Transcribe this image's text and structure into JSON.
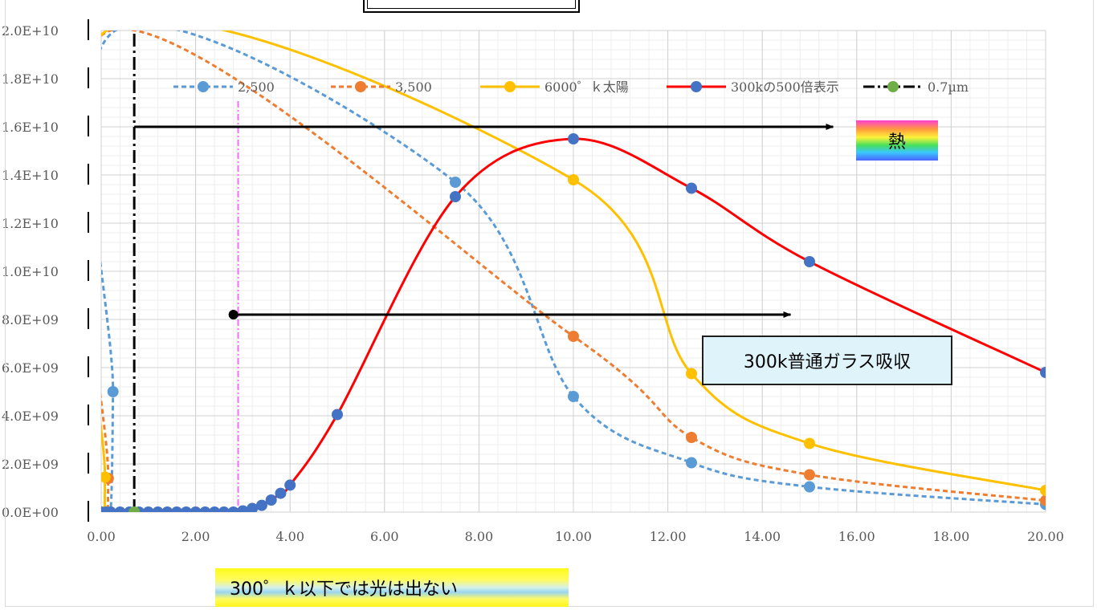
{
  "chart_data": {
    "type": "line",
    "title": "",
    "xlabel": "",
    "ylabel": "",
    "xlim": [
      0,
      20
    ],
    "ylim": [
      0,
      20000000000
    ],
    "x_ticks": [
      "0.00",
      "2.00",
      "4.00",
      "6.00",
      "8.00",
      "10.00",
      "12.00",
      "14.00",
      "16.00",
      "18.00",
      "20.00"
    ],
    "y_ticks": [
      "0.0E+00",
      "2.0E+09",
      "4.0E+09",
      "6.0E+09",
      "8.0E+09",
      "1.0E+10",
      "1.2E+10",
      "1.4E+10",
      "1.6E+10",
      "1.8E+10",
      "2.0E+10"
    ],
    "grid": true,
    "legend_position": "top",
    "series": [
      {
        "name": "2,500",
        "color": "#5b9bd5",
        "style": "dashed",
        "x": [
          0.1,
          0.2,
          0.25,
          0.3,
          7.5,
          10.0,
          12.5,
          15.0,
          20.0
        ],
        "y": [
          0,
          0,
          5000000000,
          20000000000,
          13700000000,
          4800000000,
          2050000000,
          1050000000,
          320000000
        ]
      },
      {
        "name": "3,500",
        "color": "#ed7d31",
        "style": "dashed",
        "x": [
          0.05,
          0.1,
          0.15,
          0.2,
          10.0,
          12.5,
          15.0,
          20.0
        ],
        "y": [
          0,
          0,
          1400000000,
          20000000000,
          7300000000,
          3100000000,
          1550000000,
          480000000
        ]
      },
      {
        "name": "6000゜ｋ太陽",
        "color": "#ffc000",
        "style": "solid",
        "x": [
          0.05,
          0.08,
          0.12,
          10.0,
          12.5,
          15.0,
          20.0
        ],
        "y": [
          0,
          1450000000,
          20000000000,
          13800000000,
          5750000000,
          2850000000,
          900000000
        ]
      },
      {
        "name": "300kの500倍表示",
        "color": "#ff0000",
        "marker": "#4472c4",
        "style": "solid",
        "x": [
          0.0,
          0.1,
          0.2,
          0.4,
          0.6,
          0.8,
          1.0,
          1.2,
          1.4,
          1.6,
          1.8,
          2.0,
          2.2,
          2.4,
          2.6,
          2.8,
          3.0,
          3.2,
          3.4,
          3.6,
          3.8,
          4.0,
          5.0,
          7.5,
          10.0,
          12.5,
          15.0,
          20.0
        ],
        "y": [
          0,
          0,
          0,
          0,
          0,
          0,
          0,
          0,
          0,
          0,
          0,
          0,
          0,
          0,
          0,
          0,
          50000000,
          150000000,
          280000000,
          500000000,
          780000000,
          1120000000,
          4050000000,
          13100000000,
          15500000000,
          13450000000,
          10400000000,
          5800000000
        ]
      },
      {
        "name": "0.7µm",
        "color": "#000000",
        "marker": "#70ad47",
        "style": "dash-dot",
        "x": [
          0.7,
          0.7
        ],
        "y": [
          0,
          20000000000
        ]
      }
    ],
    "reference_lines": [
      {
        "x": 2.9,
        "color": "#ff66ff",
        "style": "dash-dot"
      }
    ],
    "arrows": [
      {
        "from": [
          0.7,
          16000000000
        ],
        "to": [
          15.5,
          16000000000
        ]
      },
      {
        "from": [
          2.8,
          8200000000
        ],
        "to": [
          14.6,
          8200000000
        ]
      }
    ]
  },
  "annotations": {
    "glass": "300k普通ガラス吸収",
    "heat": "熱",
    "light": "300゜ｋ以下では光は出ない"
  }
}
